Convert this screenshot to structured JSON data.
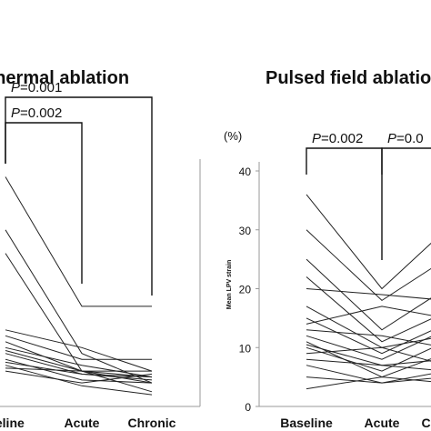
{
  "chart_data": [
    {
      "type": "line",
      "title": "Thermal ablation",
      "categories": [
        "Baseline",
        "Acute",
        "Chronic"
      ],
      "ylim": [
        0,
        40
      ],
      "y_ticks": [],
      "ylabel": "",
      "unit": "",
      "significance": [
        {
          "from": "Baseline",
          "to": "Acute",
          "label": "P=0.002"
        },
        {
          "from": "Baseline",
          "to": "Chronic",
          "label": "P=0.001"
        }
      ],
      "series": [
        {
          "values": [
            39,
            17,
            17
          ]
        },
        {
          "values": [
            30,
            9,
            4
          ]
        },
        {
          "values": [
            26,
            6,
            6
          ]
        },
        {
          "values": [
            13,
            10,
            6
          ]
        },
        {
          "values": [
            12,
            8,
            8
          ]
        },
        {
          "values": [
            11,
            6,
            5
          ]
        },
        {
          "values": [
            10,
            7,
            5
          ]
        },
        {
          "values": [
            9.5,
            6,
            2.5
          ]
        },
        {
          "values": [
            9,
            5.5,
            4.5
          ]
        },
        {
          "values": [
            8,
            4.5,
            4
          ]
        },
        {
          "values": [
            7.5,
            5.5,
            5
          ]
        },
        {
          "values": [
            7,
            3.5,
            2
          ]
        },
        {
          "values": [
            6.5,
            6,
            4
          ]
        },
        {
          "values": [
            6,
            4,
            5.5
          ]
        }
      ]
    },
    {
      "type": "line",
      "title": "Pulsed field ablation",
      "categories": [
        "Baseline",
        "Acute",
        "Chronic"
      ],
      "ylim": [
        0,
        40
      ],
      "y_ticks": [
        0,
        10,
        20,
        30,
        40
      ],
      "ylabel": "Mean LPV strain",
      "unit": "(%)",
      "significance": [
        {
          "from": "Baseline",
          "to": "Acute",
          "label": "P=0.002"
        },
        {
          "from": "Acute",
          "to": "Chronic",
          "label": "P=0.0"
        }
      ],
      "series": [
        {
          "values": [
            36,
            20,
            30
          ]
        },
        {
          "values": [
            30,
            18,
            25
          ]
        },
        {
          "values": [
            25,
            13,
            20
          ]
        },
        {
          "values": [
            22,
            11,
            16
          ]
        },
        {
          "values": [
            20,
            19,
            18
          ]
        },
        {
          "values": [
            17,
            10,
            12
          ]
        },
        {
          "values": [
            15,
            9,
            14
          ]
        },
        {
          "values": [
            14,
            17,
            15
          ]
        },
        {
          "values": [
            13,
            12,
            10
          ]
        },
        {
          "values": [
            12,
            8,
            13
          ]
        },
        {
          "values": [
            11,
            5,
            9
          ]
        },
        {
          "values": [
            10.5,
            7,
            8
          ]
        },
        {
          "values": [
            10,
            6,
            11
          ]
        },
        {
          "values": [
            9,
            10,
            7
          ]
        },
        {
          "values": [
            8,
            7,
            6
          ]
        },
        {
          "values": [
            7,
            4,
            5
          ]
        },
        {
          "values": [
            5,
            4,
            6
          ]
        },
        {
          "values": [
            3,
            5,
            4
          ]
        }
      ]
    }
  ]
}
